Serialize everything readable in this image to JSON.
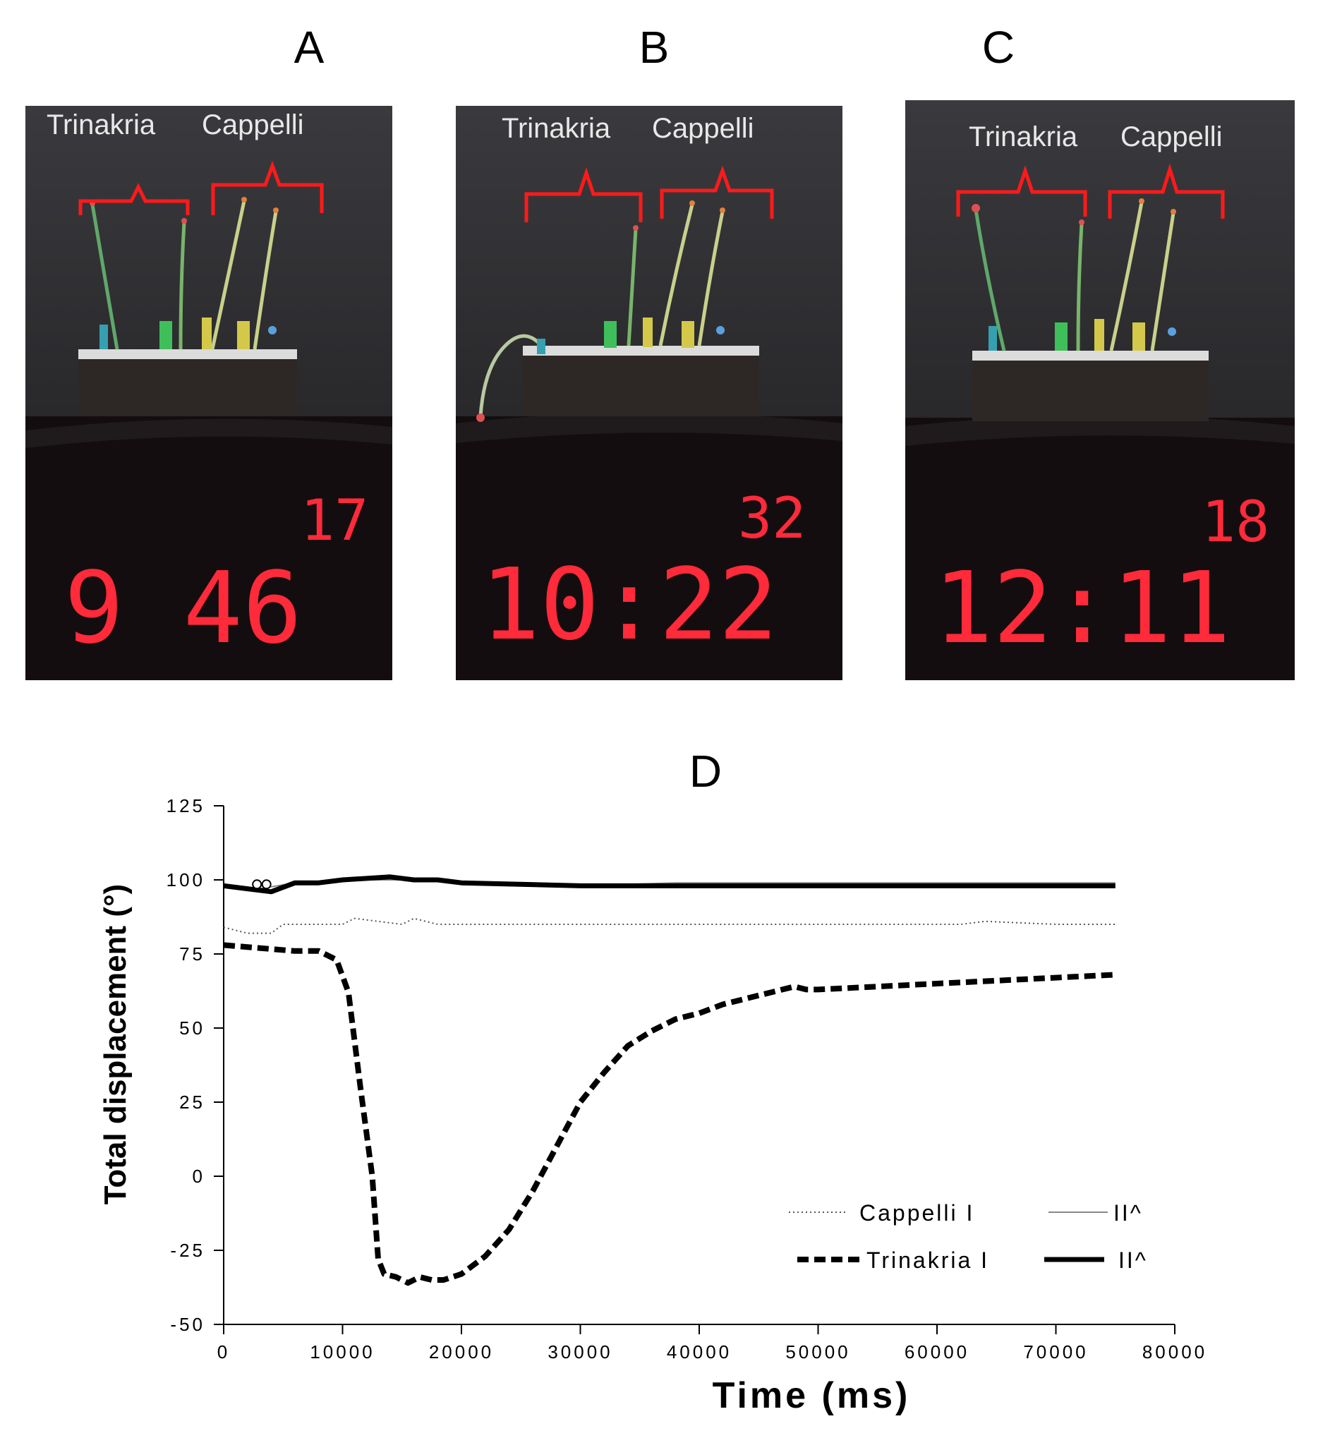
{
  "panels": [
    {
      "letter": "A",
      "labels": [
        "Trinakria",
        "Cappelli"
      ],
      "clock_small": "17",
      "clock_main": "9 46"
    },
    {
      "letter": "B",
      "labels": [
        "Trinakria",
        "Cappelli"
      ],
      "clock_small": "32",
      "clock_main": "10:22"
    },
    {
      "letter": "C",
      "labels": [
        "Trinakria",
        "Cappelli"
      ],
      "clock_small": "18",
      "clock_main": "12:11"
    }
  ],
  "colors": {
    "bracket": "#ff1a1a",
    "led": "#ff2a3a",
    "photo_bg": "#2b2b2e",
    "photo_floor": "#120c0e"
  },
  "chart_data": {
    "type": "line",
    "title": "D",
    "xlabel": "Time (ms)",
    "ylabel": "Total displacement (°)",
    "xlim": [
      0,
      80000
    ],
    "ylim": [
      -50,
      125
    ],
    "xticks": [
      0,
      10000,
      20000,
      30000,
      40000,
      50000,
      60000,
      70000,
      80000
    ],
    "yticks": [
      125,
      100,
      75,
      50,
      25,
      0,
      -25,
      -50
    ],
    "grid": false,
    "legend_placement": "bottom-right",
    "series": [
      {
        "name": "Cappelli I",
        "style": "dotted",
        "x": [
          0,
          2000,
          4000,
          5000,
          10000,
          11000,
          15000,
          16000,
          18000,
          20000,
          30000,
          40000,
          50000,
          60000,
          62000,
          64000,
          70000,
          75000
        ],
        "y": [
          84,
          82,
          82,
          85,
          85,
          87,
          85,
          87,
          85,
          85,
          85,
          85,
          85,
          85,
          85,
          86,
          85,
          85
        ]
      },
      {
        "name": "II^",
        "style": "thin-solid",
        "x": [
          0,
          3000,
          6000,
          10000,
          15000,
          20000,
          30000,
          38000,
          40000,
          50000,
          60000,
          70000,
          75000
        ],
        "y": [
          98,
          97,
          99,
          100,
          100,
          99,
          98,
          99,
          99,
          99,
          99,
          99,
          99
        ]
      },
      {
        "name": "Trinakria I",
        "style": "dashed",
        "x": [
          0,
          3000,
          6000,
          8000,
          9500,
          10500,
          11500,
          12500,
          13000,
          13500,
          14500,
          15500,
          16500,
          17500,
          18500,
          20000,
          22000,
          24000,
          26000,
          28000,
          30000,
          32000,
          34000,
          36000,
          38000,
          40000,
          42000,
          44000,
          46000,
          48000,
          49000,
          50000,
          55000,
          60000,
          65000,
          70000,
          75000
        ],
        "y": [
          78,
          77,
          76,
          76,
          73,
          62,
          30,
          0,
          -28,
          -33,
          -34,
          -36,
          -34,
          -35,
          -35,
          -33,
          -27,
          -18,
          -5,
          10,
          25,
          35,
          44,
          49,
          53,
          55,
          58,
          60,
          62,
          64,
          63,
          63,
          64,
          65,
          66,
          67,
          68
        ]
      },
      {
        "name": "II^",
        "style": "thick-solid",
        "x": [
          0,
          2000,
          4000,
          6000,
          8000,
          10000,
          14000,
          16000,
          18000,
          20000,
          30000,
          40000,
          50000,
          60000,
          70000,
          75000
        ],
        "y": [
          98,
          97,
          96,
          99,
          99,
          100,
          101,
          100,
          100,
          99,
          98,
          98,
          98,
          98,
          98,
          98
        ]
      }
    ]
  }
}
